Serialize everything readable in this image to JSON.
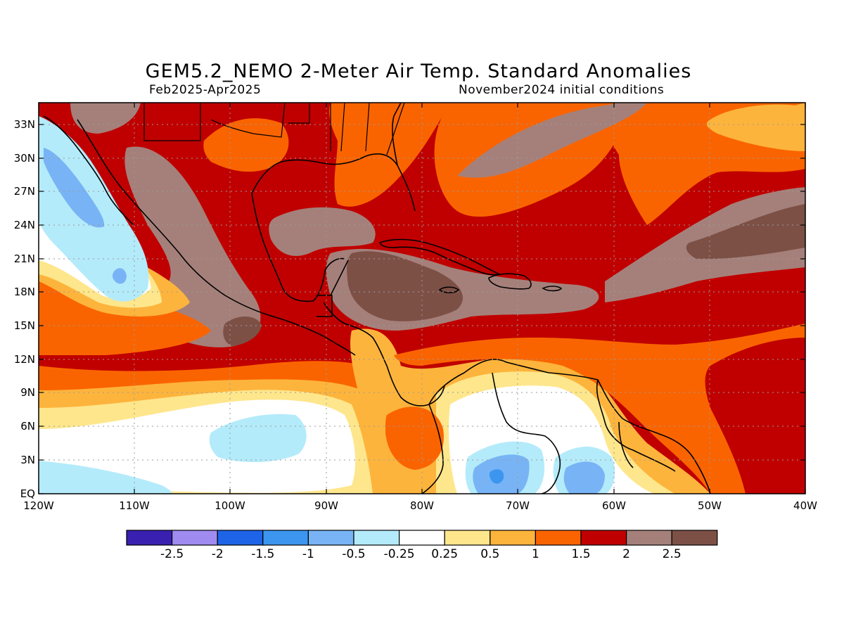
{
  "title": "GEM5.2_NEMO 2-Meter Air Temp. Standard Anomalies",
  "subtitle_left": "Feb2025-Apr2025",
  "subtitle_right": "November2024 initial conditions",
  "lat_ticks": [
    "33N",
    "30N",
    "27N",
    "24N",
    "21N",
    "18N",
    "15N",
    "12N",
    "9N",
    "6N",
    "3N",
    "EQ"
  ],
  "lon_ticks": [
    "120W",
    "110W",
    "100W",
    "90W",
    "80W",
    "70W",
    "60W",
    "50W",
    "40W"
  ],
  "colorbar": {
    "labels": [
      "-2.5",
      "-2",
      "-1.5",
      "-1",
      "-0.5",
      "-0.25",
      "0.25",
      "0.5",
      "1",
      "1.5",
      "2",
      "2.5"
    ],
    "colors": [
      "#3a20b0",
      "#a08cf0",
      "#1e64e8",
      "#3c96f0",
      "#78b4f5",
      "#b4ebfa",
      "#ffffff",
      "#fee68c",
      "#fdb43c",
      "#fa6400",
      "#c00000",
      "#a5807a",
      "#7d5046"
    ]
  },
  "colors": {
    "lt_blue": "#b4ebfa",
    "blue": "#78b4f5",
    "blue2": "#3c96f0",
    "white": "#ffffff",
    "yellow": "#fee68c",
    "orange_lt": "#fdb43c",
    "orange": "#fa6400",
    "red": "#c00000",
    "taupe": "#a5807a",
    "brown": "#7d5046"
  }
}
